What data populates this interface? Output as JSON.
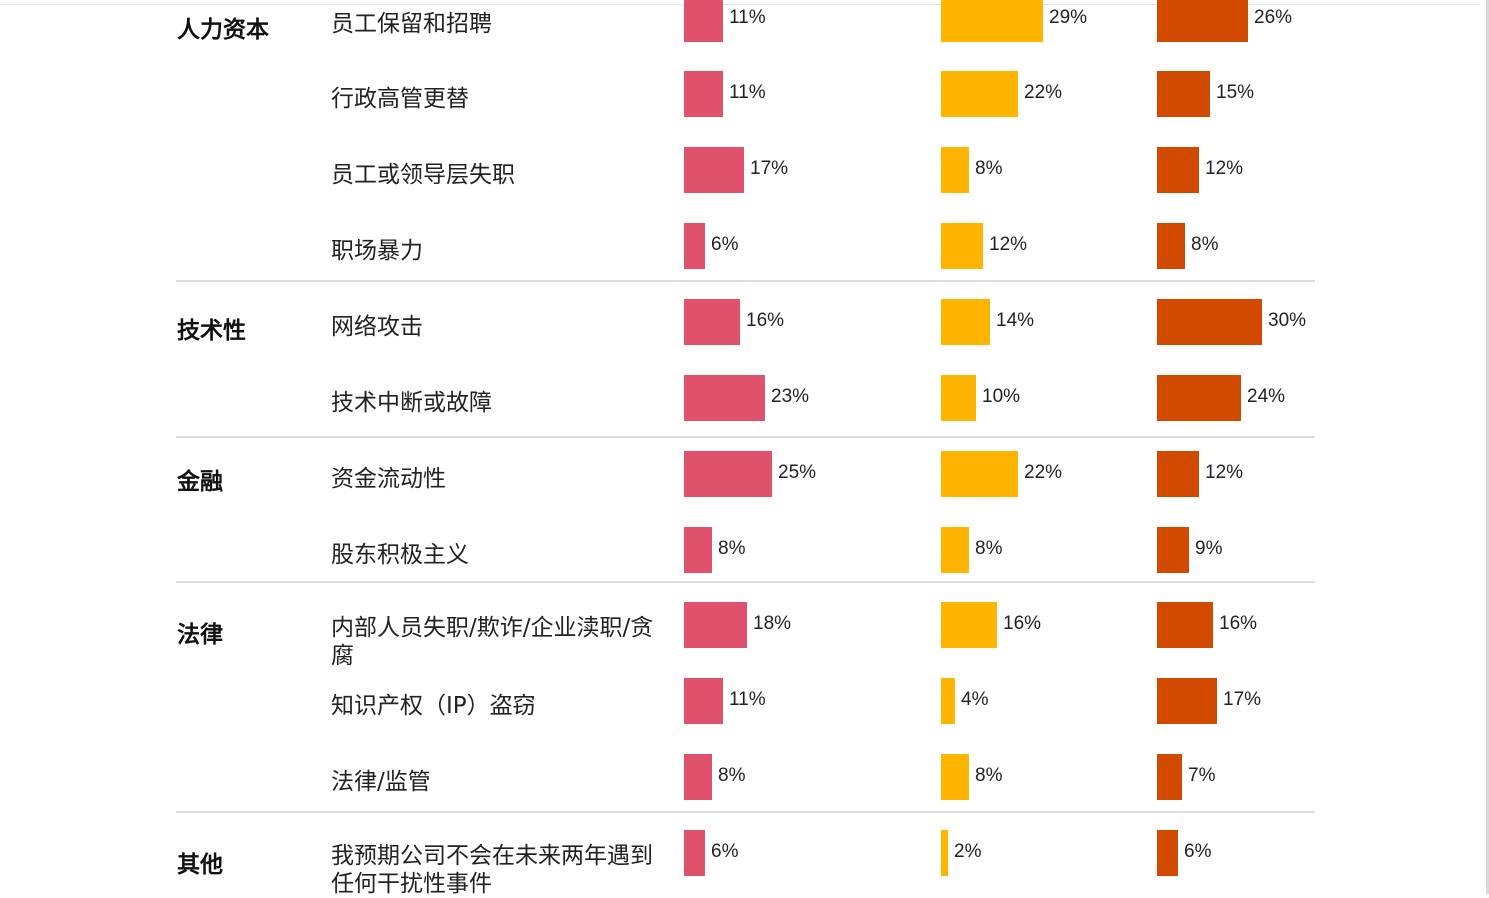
{
  "chart_data": {
    "type": "bar",
    "orientation": "horizontal",
    "colors": [
      "#e0526c",
      "#ffb400",
      "#d24a00"
    ],
    "groups": [
      {
        "category": "人力资本",
        "items": [
          {
            "label": "员工保留和招聘",
            "values": [
              11,
              29,
              26
            ]
          },
          {
            "label": "行政高管更替",
            "values": [
              11,
              22,
              15
            ]
          },
          {
            "label": "员工或领导层失职",
            "values": [
              17,
              8,
              12
            ]
          },
          {
            "label": "职场暴力",
            "values": [
              6,
              12,
              8
            ]
          }
        ]
      },
      {
        "category": "技术性",
        "items": [
          {
            "label": "网络攻击",
            "values": [
              16,
              14,
              30
            ]
          },
          {
            "label": "技术中断或故障",
            "values": [
              23,
              10,
              24
            ]
          }
        ]
      },
      {
        "category": "金融",
        "items": [
          {
            "label": "资金流动性",
            "values": [
              25,
              22,
              12
            ]
          },
          {
            "label": "股东积极主义",
            "values": [
              8,
              8,
              9
            ]
          }
        ]
      },
      {
        "category": "法律",
        "items": [
          {
            "label": "内部人员失职/欺诈/企业渎职/贪腐",
            "values": [
              18,
              16,
              16
            ]
          },
          {
            "label": "知识产权（IP）盗窃",
            "values": [
              11,
              4,
              17
            ]
          },
          {
            "label": "法律/监管",
            "values": [
              8,
              8,
              7
            ]
          }
        ]
      },
      {
        "category": "其他",
        "items": [
          {
            "label": "我预期公司不会在未来两年遇到任何干扰性事件",
            "values": [
              6,
              2,
              6
            ]
          }
        ]
      }
    ],
    "value_suffix": "%",
    "legend": "none",
    "grid": false
  }
}
